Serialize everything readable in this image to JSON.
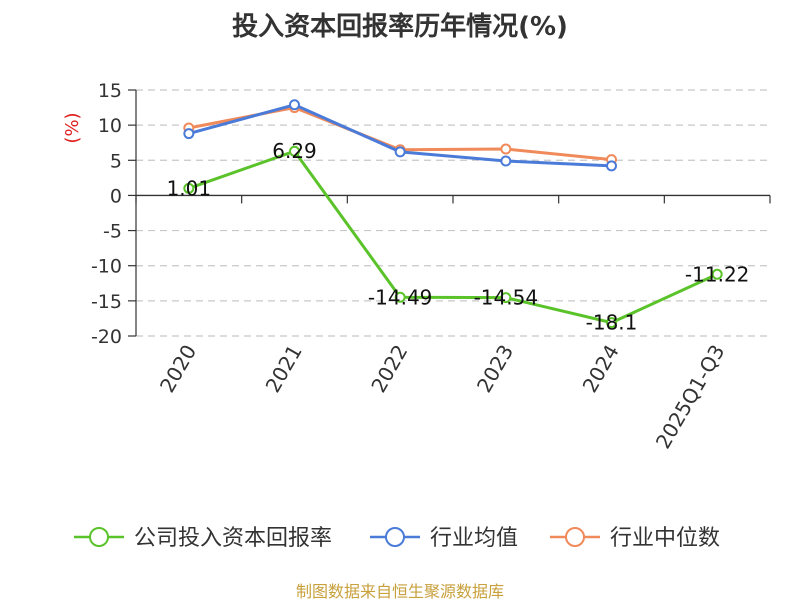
{
  "title": "投入资本回报率历年情况(%)",
  "source": "制图数据来自恒生聚源数据库",
  "chart_data": {
    "type": "line",
    "title": "投入资本回报率历年情况(%)",
    "ylabel": "(%)",
    "categories": [
      "2020",
      "2021",
      "2022",
      "2023",
      "2024",
      "2025Q1-Q3"
    ],
    "ylim": [
      -20,
      15
    ],
    "yticks": [
      15,
      10,
      5,
      0,
      -5,
      -10,
      -15,
      -20
    ],
    "grid": true,
    "legend_position": "bottom",
    "series": [
      {
        "name": "公司投入资本回报率",
        "color": "#5bc32a",
        "values": [
          1.01,
          6.29,
          -14.49,
          -14.54,
          -18.1,
          -11.22
        ],
        "labels": [
          "1.01",
          "6.29",
          "-14.49",
          "-14.54",
          "-18.1",
          "-11.22"
        ]
      },
      {
        "name": "行业均值",
        "color": "#4a7bd8",
        "values": [
          8.8,
          12.9,
          6.2,
          4.9,
          4.2,
          null
        ]
      },
      {
        "name": "行业中位数",
        "color": "#f08a5a",
        "values": [
          9.6,
          12.5,
          6.5,
          6.6,
          5.1,
          null
        ]
      }
    ]
  }
}
